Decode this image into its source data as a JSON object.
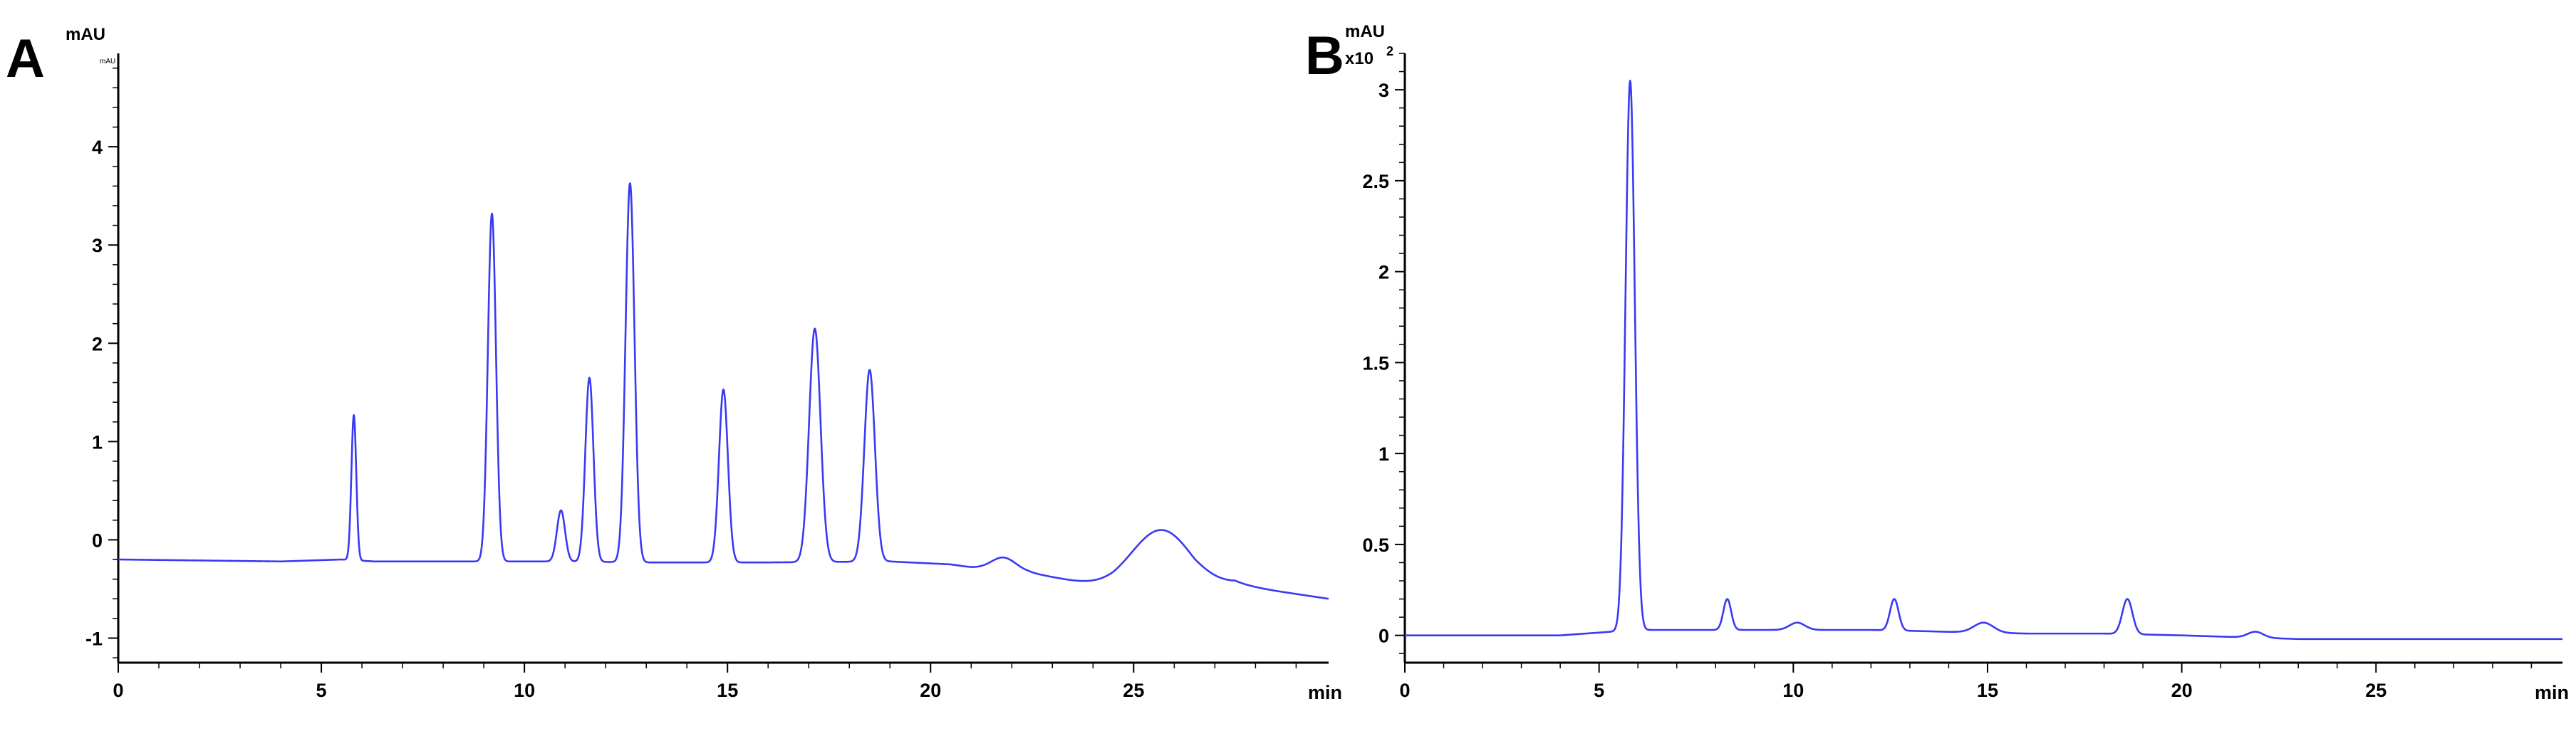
{
  "chart_data": [
    {
      "type": "line",
      "panel_label": "A",
      "ylabel": "mAU",
      "ylabel_small": "mAU",
      "xlabel": "min",
      "xlim": [
        0,
        29.8
      ],
      "ylim": [
        -1.25,
        4.95
      ],
      "x_ticks": [
        0,
        5,
        10,
        15,
        20,
        25
      ],
      "y_ticks": [
        -1,
        0,
        1,
        2,
        3,
        4
      ],
      "grid": false,
      "baseline_points": [
        [
          0,
          -0.2
        ],
        [
          4,
          -0.22
        ],
        [
          5.5,
          -0.2
        ],
        [
          6.3,
          -0.22
        ],
        [
          9,
          -0.22
        ],
        [
          11,
          -0.22
        ],
        [
          13,
          -0.23
        ],
        [
          16,
          -0.23
        ],
        [
          19,
          -0.22
        ],
        [
          20.5,
          -0.25
        ],
        [
          21,
          -0.28
        ],
        [
          22.4,
          -0.33
        ],
        [
          23.5,
          -0.42
        ],
        [
          24.5,
          -0.5
        ],
        [
          26.5,
          -0.55
        ],
        [
          27.5,
          -0.45
        ],
        [
          28.5,
          -0.52
        ],
        [
          29.8,
          -0.6
        ]
      ],
      "peaks": [
        {
          "rt": 5.8,
          "height": 1.27,
          "width": 0.06
        },
        {
          "rt": 9.2,
          "height": 3.32,
          "width": 0.1
        },
        {
          "rt": 10.9,
          "height": 0.3,
          "width": 0.1
        },
        {
          "rt": 11.6,
          "height": 1.65,
          "width": 0.1
        },
        {
          "rt": 12.6,
          "height": 3.63,
          "width": 0.11
        },
        {
          "rt": 14.9,
          "height": 1.53,
          "width": 0.11
        },
        {
          "rt": 17.15,
          "height": 2.15,
          "width": 0.14
        },
        {
          "rt": 18.5,
          "height": 1.73,
          "width": 0.13
        },
        {
          "rt": 21.8,
          "height": -0.18,
          "width": 0.3
        },
        {
          "rt": 25.7,
          "height": 0.1,
          "width": 0.75
        }
      ]
    },
    {
      "type": "line",
      "panel_label": "B",
      "ylabel": "mAU",
      "ylabel_multiplier": "x10",
      "ylabel_exponent": "2",
      "xlabel": "min",
      "xlim": [
        0,
        29.8
      ],
      "ylim": [
        -0.15,
        3.2
      ],
      "x_ticks": [
        0,
        5,
        10,
        15,
        20,
        25
      ],
      "y_ticks": [
        0,
        0.5,
        1,
        1.5,
        2,
        2.5,
        3
      ],
      "grid": false,
      "baseline_points": [
        [
          0,
          0.0
        ],
        [
          4,
          0.0
        ],
        [
          5.3,
          0.02
        ],
        [
          6.3,
          0.03
        ],
        [
          8,
          0.03
        ],
        [
          9,
          0.03
        ],
        [
          12,
          0.03
        ],
        [
          14,
          0.02
        ],
        [
          16,
          0.01
        ],
        [
          18,
          0.01
        ],
        [
          20,
          0.0
        ],
        [
          23,
          -0.02
        ],
        [
          29.8,
          -0.02
        ]
      ],
      "peaks": [
        {
          "rt": 5.8,
          "height": 3.05,
          "width": 0.12
        },
        {
          "rt": 8.3,
          "height": 0.2,
          "width": 0.1
        },
        {
          "rt": 10.1,
          "height": 0.07,
          "width": 0.2
        },
        {
          "rt": 12.6,
          "height": 0.2,
          "width": 0.11
        },
        {
          "rt": 13.9,
          "height": 0.02,
          "width": 0.2
        },
        {
          "rt": 14.9,
          "height": 0.07,
          "width": 0.25
        },
        {
          "rt": 18.6,
          "height": 0.2,
          "width": 0.13
        },
        {
          "rt": 21.9,
          "height": 0.02,
          "width": 0.2
        }
      ]
    }
  ]
}
